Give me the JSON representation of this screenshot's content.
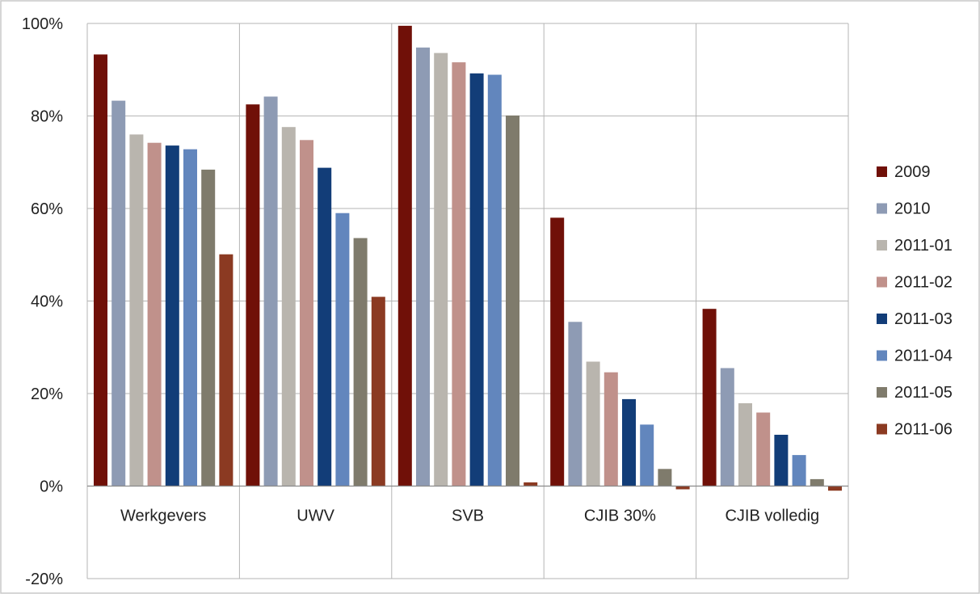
{
  "chart_data": {
    "type": "bar",
    "categories": [
      "Werkgevers",
      "UWV",
      "SVB",
      "CJIB 30%",
      "CJIB volledig"
    ],
    "y_ticks": [
      "-20%",
      "0%",
      "20%",
      "40%",
      "60%",
      "80%",
      "100%"
    ],
    "y_tick_values": [
      -20,
      0,
      20,
      40,
      60,
      80,
      100
    ],
    "ylim": [
      -20,
      100
    ],
    "grid": true,
    "legend_position": "right",
    "series": [
      {
        "name": "2009",
        "color": "#701008",
        "values": [
          93.3,
          82.5,
          99.5,
          58.0,
          38.3
        ]
      },
      {
        "name": "2010",
        "color": "#8e9bb4",
        "values": [
          83.3,
          84.2,
          94.8,
          35.5,
          25.5
        ]
      },
      {
        "name": "2011-01",
        "color": "#b9b5ae",
        "values": [
          76.0,
          77.6,
          93.6,
          26.9,
          17.9
        ]
      },
      {
        "name": "2011-02",
        "color": "#c0918b",
        "values": [
          74.2,
          74.8,
          91.6,
          24.6,
          15.9
        ]
      },
      {
        "name": "2011-03",
        "color": "#123d78",
        "values": [
          73.6,
          68.8,
          89.2,
          18.8,
          11.1
        ]
      },
      {
        "name": "2011-04",
        "color": "#6286bd",
        "values": [
          72.8,
          59.0,
          88.9,
          13.3,
          6.7
        ]
      },
      {
        "name": "2011-05",
        "color": "#7f7b6c",
        "values": [
          68.4,
          53.6,
          80.1,
          3.7,
          1.5
        ]
      },
      {
        "name": "2011-06",
        "color": "#8b3a22",
        "values": [
          50.1,
          40.9,
          0.8,
          -0.7,
          -1.0
        ]
      }
    ]
  }
}
